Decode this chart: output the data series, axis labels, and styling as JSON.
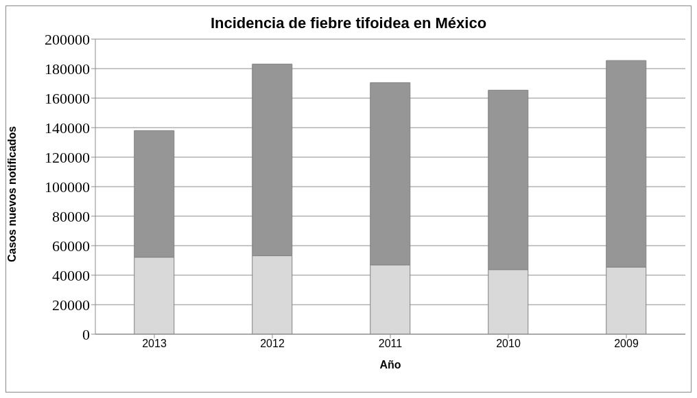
{
  "chart_data": {
    "type": "bar",
    "title": "Incidencia de fiebre tifoidea en México",
    "xlabel": "Año",
    "ylabel": "Casos nuevos notificados",
    "categories": [
      "2013",
      "2012",
      "2011",
      "2010",
      "2009"
    ],
    "series": [
      {
        "color": "#d9d9d9",
        "values": [
          52200,
          53200,
          47000,
          43800,
          45500
        ]
      },
      {
        "color": "#969696",
        "values": [
          85800,
          129900,
          123500,
          121600,
          140000
        ]
      }
    ],
    "stacked": true,
    "ylim": [
      0,
      200000
    ],
    "yticks": [
      0,
      20000,
      40000,
      60000,
      80000,
      100000,
      120000,
      140000,
      160000,
      180000,
      200000
    ],
    "grid": "y",
    "legend": false
  }
}
